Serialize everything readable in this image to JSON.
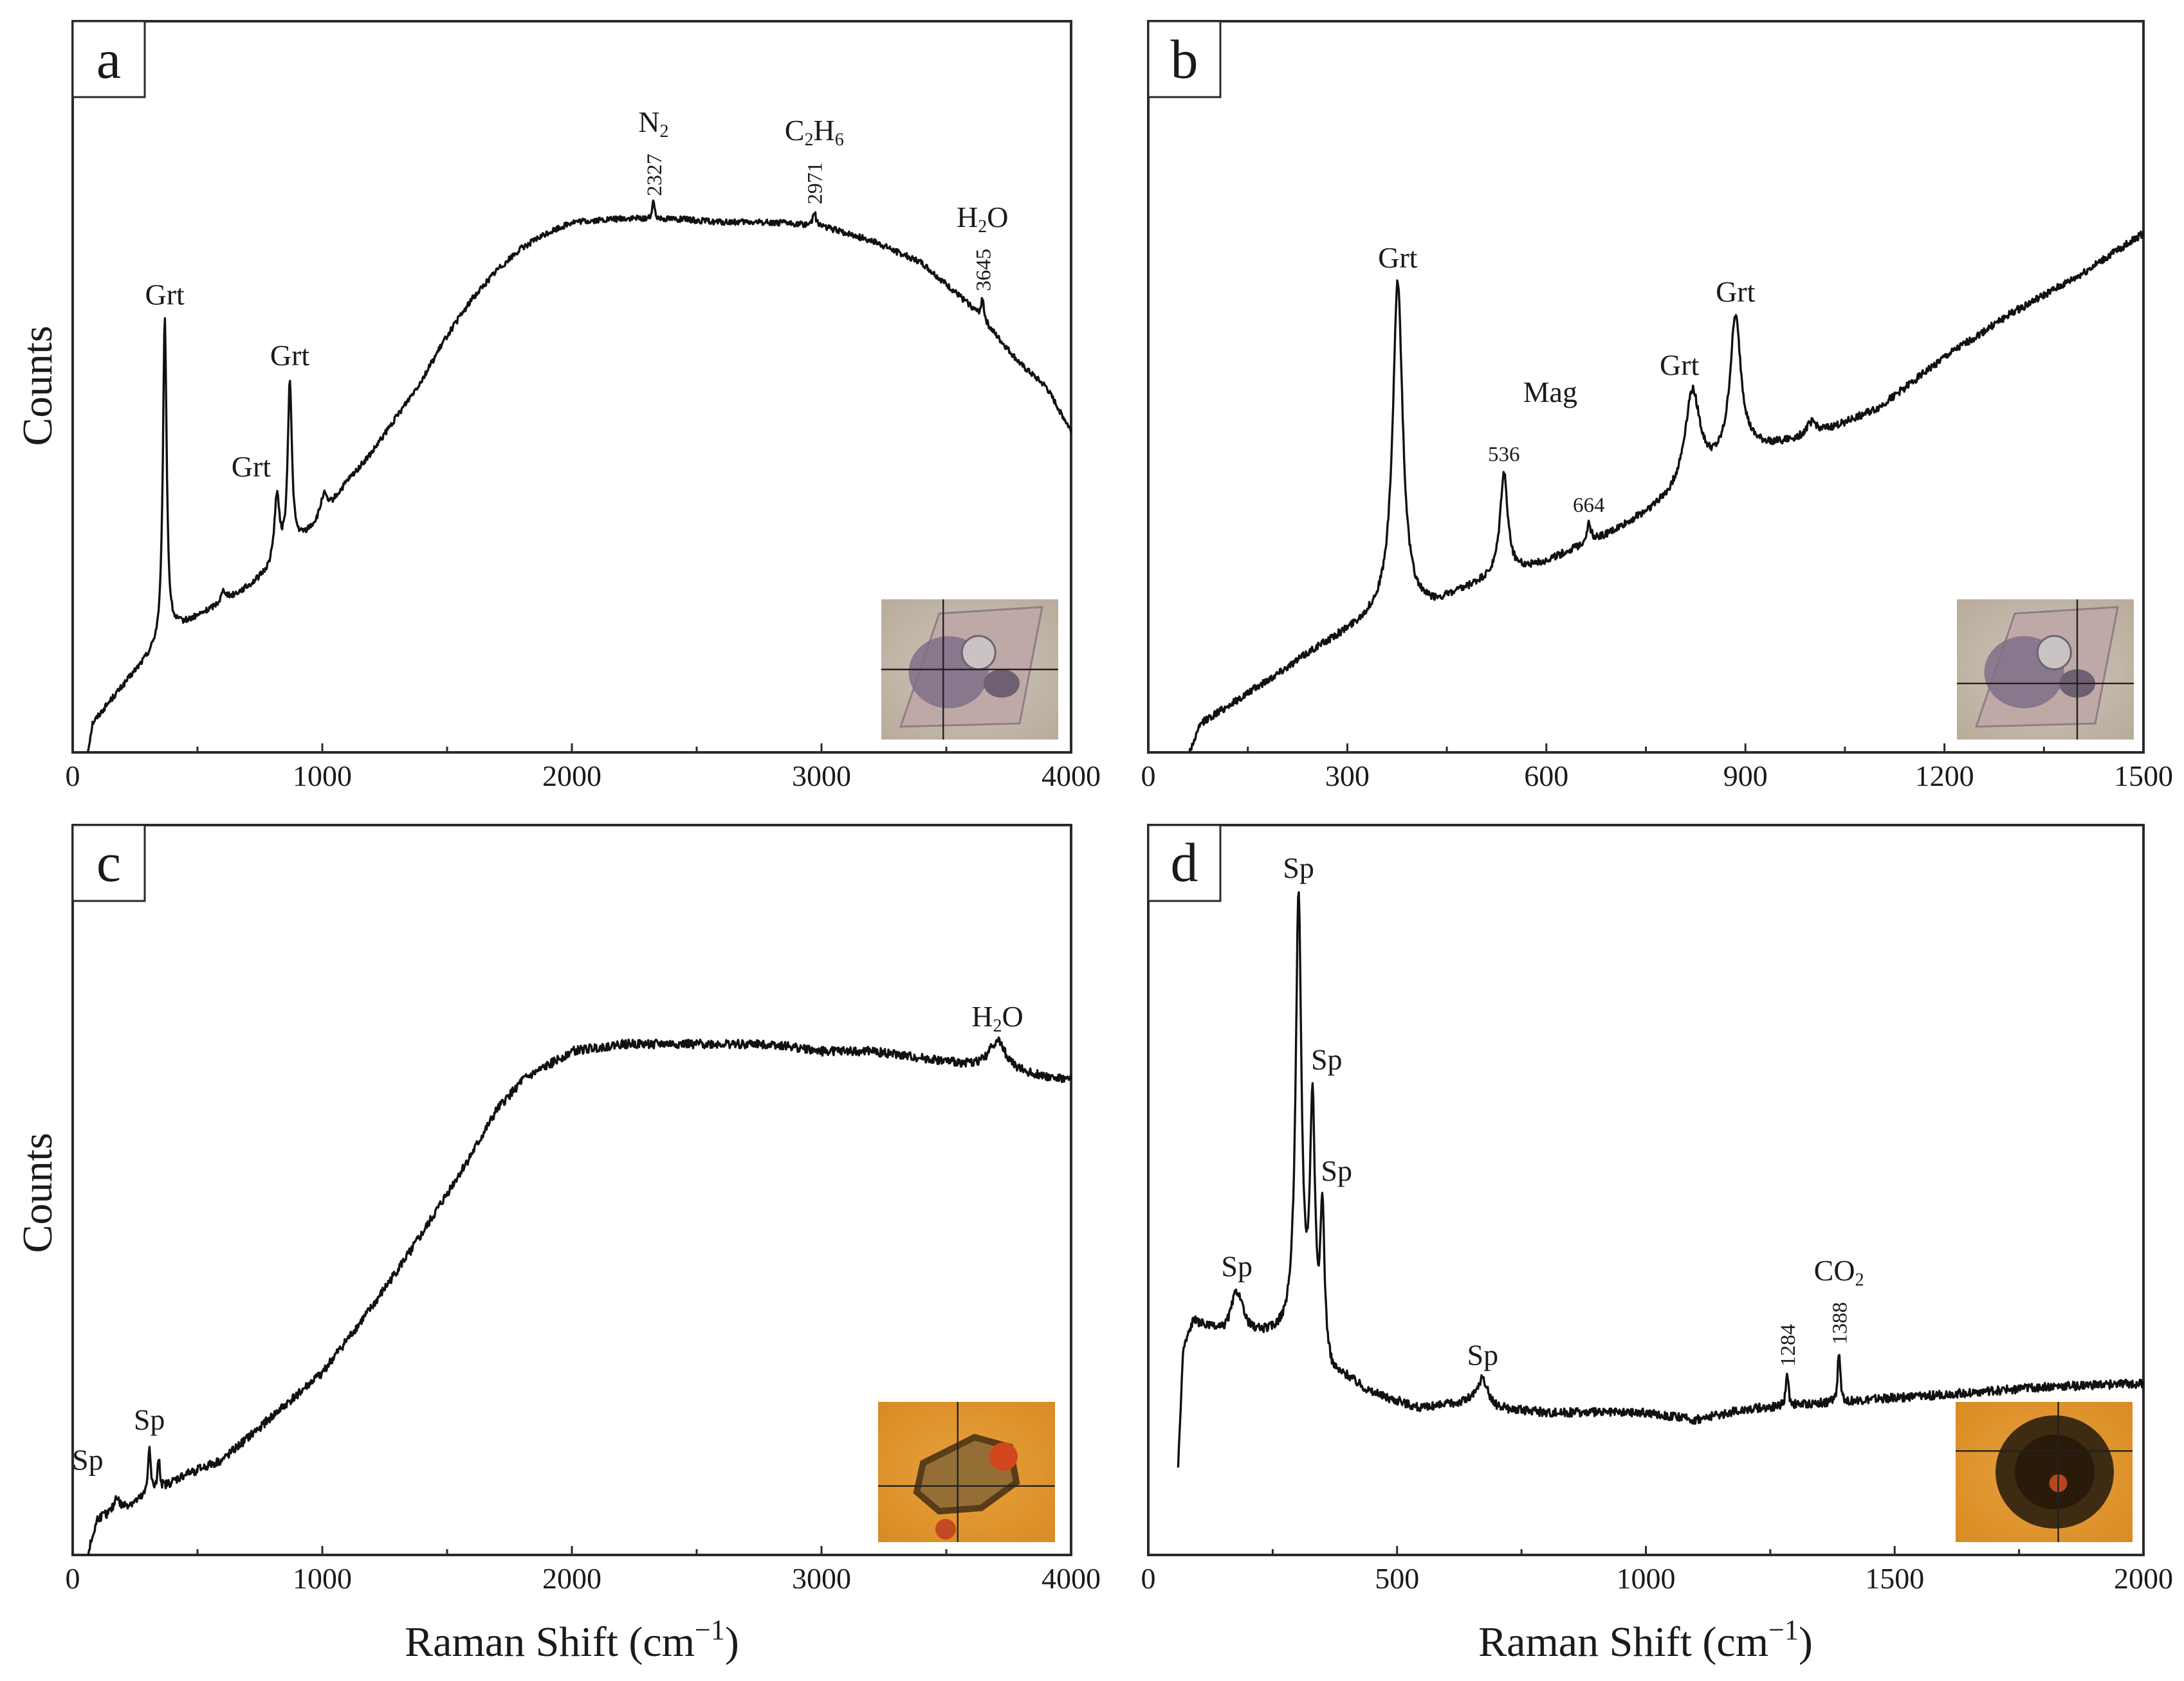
{
  "figure": {
    "y_axis_title": "Counts",
    "x_axis_title": "Raman Shift (cm",
    "x_axis_title_sup": "−1",
    "x_axis_title_end": ")"
  },
  "chart_data": [
    {
      "panel": "a",
      "type": "line",
      "xlabel": "Raman Shift (cm−1)",
      "ylabel": "Counts",
      "xlim": [
        0,
        4000
      ],
      "ylim": [
        0,
        1
      ],
      "xticks": [
        0,
        1000,
        2000,
        3000,
        4000
      ],
      "tick_labels": [
        "0",
        "1000",
        "2000",
        "3000",
        "4000"
      ],
      "baseline": [
        [
          60,
          0
        ],
        [
          80,
          0.04
        ],
        [
          150,
          0.07
        ],
        [
          250,
          0.11
        ],
        [
          330,
          0.14
        ],
        [
          420,
          0.17
        ],
        [
          500,
          0.185
        ],
        [
          600,
          0.205
        ],
        [
          700,
          0.225
        ],
        [
          780,
          0.245
        ],
        [
          900,
          0.285
        ],
        [
          1000,
          0.32
        ],
        [
          1100,
          0.37
        ],
        [
          1200,
          0.41
        ],
        [
          1300,
          0.46
        ],
        [
          1400,
          0.51
        ],
        [
          1500,
          0.57
        ],
        [
          1600,
          0.62
        ],
        [
          1700,
          0.66
        ],
        [
          1800,
          0.69
        ],
        [
          1900,
          0.71
        ],
        [
          2000,
          0.725
        ],
        [
          2200,
          0.73
        ],
        [
          2400,
          0.73
        ],
        [
          2600,
          0.725
        ],
        [
          2800,
          0.725
        ],
        [
          3000,
          0.72
        ],
        [
          3200,
          0.7
        ],
        [
          3400,
          0.67
        ],
        [
          3600,
          0.61
        ],
        [
          3700,
          0.57
        ],
        [
          3800,
          0.53
        ],
        [
          3900,
          0.5
        ],
        [
          4000,
          0.44
        ]
      ],
      "peaks": [
        {
          "x": 369,
          "height": 0.44,
          "width": 9
        },
        {
          "x": 818,
          "height": 0.09,
          "width": 12
        },
        {
          "x": 870,
          "height": 0.23,
          "width": 10
        },
        {
          "x": 1005,
          "height": 0.03,
          "width": 15
        },
        {
          "x": 605,
          "height": 0.015,
          "width": 12
        },
        {
          "x": 2327,
          "height": 0.022,
          "width": 6
        },
        {
          "x": 2971,
          "height": 0.02,
          "width": 7
        },
        {
          "x": 3645,
          "height": 0.03,
          "width": 7
        }
      ],
      "noise": 0.004,
      "annotations": [
        {
          "text": "Grt",
          "x": 369
        },
        {
          "text": "Grt",
          "x": 818
        },
        {
          "text": "Grt",
          "x": 870
        },
        {
          "text": "N2",
          "x": 2327,
          "wavenumber": "2327"
        },
        {
          "text": "C2H6",
          "x": 2971,
          "wavenumber": "2971"
        },
        {
          "text": "H2O",
          "x": 3645,
          "wavenumber": "3645"
        }
      ],
      "inset": {
        "style": "grey",
        "crosshair": [
          0.35,
          0.5
        ]
      }
    },
    {
      "panel": "b",
      "type": "line",
      "xlabel": "Raman Shift (cm−1)",
      "ylabel": "Counts",
      "xlim": [
        0,
        1500
      ],
      "ylim": [
        0,
        1
      ],
      "xticks": [
        0,
        300,
        600,
        900,
        1200,
        1500
      ],
      "tick_labels": [
        "0",
        "300",
        "600",
        "900",
        "1200",
        "1500"
      ],
      "baseline": [
        [
          62,
          0
        ],
        [
          80,
          0.04
        ],
        [
          150,
          0.08
        ],
        [
          250,
          0.14
        ],
        [
          350,
          0.19
        ],
        [
          430,
          0.2
        ],
        [
          500,
          0.23
        ],
        [
          600,
          0.26
        ],
        [
          700,
          0.3
        ],
        [
          800,
          0.35
        ],
        [
          900,
          0.41
        ],
        [
          1000,
          0.43
        ],
        [
          1100,
          0.47
        ],
        [
          1200,
          0.54
        ],
        [
          1300,
          0.6
        ],
        [
          1400,
          0.65
        ],
        [
          1500,
          0.71
        ]
      ],
      "peaks": [
        {
          "x": 376,
          "height": 0.45,
          "width": 9
        },
        {
          "x": 536,
          "height": 0.14,
          "width": 7
        },
        {
          "x": 664,
          "height": 0.025,
          "width": 4
        },
        {
          "x": 820,
          "height": 0.13,
          "width": 14
        },
        {
          "x": 885,
          "height": 0.19,
          "width": 10
        },
        {
          "x": 1000,
          "height": 0.02,
          "width": 10
        }
      ],
      "noise": 0.005,
      "annotations": [
        {
          "text": "Grt",
          "x": 376
        },
        {
          "text": "Mag",
          "x": 536,
          "wavenumber": "536"
        },
        {
          "text": "",
          "x": 664,
          "wavenumber": "664"
        },
        {
          "text": "Grt",
          "x": 820
        },
        {
          "text": "Grt",
          "x": 885
        }
      ],
      "inset": {
        "style": "grey",
        "crosshair": [
          0.68,
          0.6
        ]
      }
    },
    {
      "panel": "c",
      "type": "line",
      "xlabel": "Raman Shift (cm−1)",
      "ylabel": "Counts",
      "xlim": [
        0,
        4000
      ],
      "ylim": [
        0,
        1
      ],
      "xticks": [
        0,
        1000,
        2000,
        3000,
        4000
      ],
      "tick_labels": [
        "0",
        "1000",
        "2000",
        "3000",
        "4000"
      ],
      "baseline": [
        [
          60,
          0
        ],
        [
          100,
          0.05
        ],
        [
          200,
          0.065
        ],
        [
          300,
          0.08
        ],
        [
          450,
          0.11
        ],
        [
          600,
          0.13
        ],
        [
          800,
          0.19
        ],
        [
          1000,
          0.25
        ],
        [
          1200,
          0.34
        ],
        [
          1400,
          0.44
        ],
        [
          1600,
          0.55
        ],
        [
          1700,
          0.61
        ],
        [
          1800,
          0.65
        ],
        [
          1900,
          0.67
        ],
        [
          2000,
          0.69
        ],
        [
          2200,
          0.7
        ],
        [
          2400,
          0.7
        ],
        [
          2600,
          0.7
        ],
        [
          2800,
          0.7
        ],
        [
          3000,
          0.69
        ],
        [
          3200,
          0.69
        ],
        [
          3400,
          0.68
        ],
        [
          3600,
          0.67
        ],
        [
          3800,
          0.66
        ],
        [
          4000,
          0.65
        ]
      ],
      "peaks": [
        {
          "x": 176,
          "height": 0.02,
          "width": 10
        },
        {
          "x": 307,
          "height": 0.07,
          "width": 6
        },
        {
          "x": 345,
          "height": 0.045,
          "width": 5
        },
        {
          "x": 3705,
          "height": 0.04,
          "width": 40
        }
      ],
      "noise": 0.006,
      "annotations": [
        {
          "text": "Sp",
          "x": 176
        },
        {
          "text": "Sp",
          "x": 307
        },
        {
          "text": "H2O",
          "x": 3705
        }
      ],
      "inset": {
        "style": "orange",
        "crosshair": [
          0.45,
          0.6
        ]
      }
    },
    {
      "panel": "d",
      "type": "line",
      "xlabel": "Raman Shift (cm−1)",
      "ylabel": "Counts",
      "xlim": [
        0,
        2000
      ],
      "ylim": [
        0,
        1
      ],
      "xticks": [
        0,
        500,
        1000,
        1500,
        2000
      ],
      "tick_labels": [
        "0",
        "500",
        "1000",
        "1500",
        "2000"
      ],
      "baseline": [
        [
          60,
          0.12
        ],
        [
          70,
          0.28
        ],
        [
          90,
          0.32
        ],
        [
          150,
          0.3
        ],
        [
          200,
          0.3
        ],
        [
          250,
          0.3
        ],
        [
          290,
          0.3
        ],
        [
          330,
          0.27
        ],
        [
          370,
          0.24
        ],
        [
          400,
          0.24
        ],
        [
          450,
          0.22
        ],
        [
          500,
          0.21
        ],
        [
          550,
          0.2
        ],
        [
          650,
          0.21
        ],
        [
          700,
          0.2
        ],
        [
          800,
          0.195
        ],
        [
          1000,
          0.195
        ],
        [
          1100,
          0.185
        ],
        [
          1200,
          0.2
        ],
        [
          1300,
          0.205
        ],
        [
          1400,
          0.21
        ],
        [
          1600,
          0.22
        ],
        [
          1800,
          0.23
        ],
        [
          2000,
          0.235
        ]
      ],
      "peaks": [
        {
          "x": 178,
          "height": 0.06,
          "width": 14
        },
        {
          "x": 302,
          "height": 0.6,
          "width": 7
        },
        {
          "x": 330,
          "height": 0.33,
          "width": 6
        },
        {
          "x": 350,
          "height": 0.2,
          "width": 5
        },
        {
          "x": 672,
          "height": 0.035,
          "width": 12
        },
        {
          "x": 1284,
          "height": 0.045,
          "width": 3
        },
        {
          "x": 1388,
          "height": 0.07,
          "width": 3
        }
      ],
      "noise": 0.006,
      "annotations": [
        {
          "text": "Sp",
          "x": 178
        },
        {
          "text": "Sp",
          "x": 302
        },
        {
          "text": "Sp",
          "x": 330
        },
        {
          "text": "Sp",
          "x": 350
        },
        {
          "text": "Sp",
          "x": 672
        },
        {
          "text": "CO2",
          "x": 1388,
          "wavenumber": "1388"
        },
        {
          "text": "",
          "x": 1284,
          "wavenumber": "1284"
        }
      ],
      "inset": {
        "style": "orange",
        "crosshair": [
          0.58,
          0.35
        ]
      }
    }
  ]
}
